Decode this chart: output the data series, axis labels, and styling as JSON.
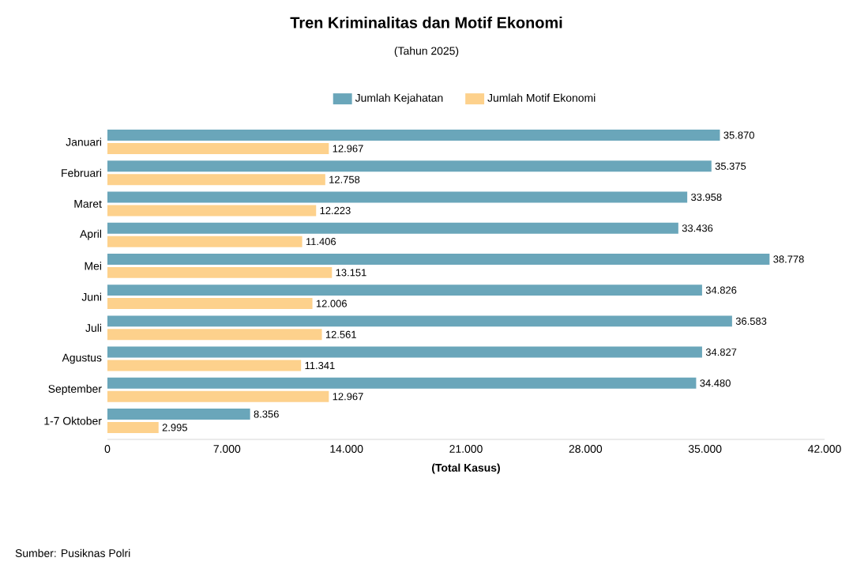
{
  "chart_data": {
    "type": "bar",
    "orientation": "horizontal",
    "title": "Tren Kriminalitas dan Motif Ekonomi",
    "subtitle": "(Tahun 2025)",
    "xlabel": "(Total Kasus)",
    "categories": [
      "Januari",
      "Februari",
      "Maret",
      "April",
      "Mei",
      "Juni",
      "Juli",
      "Agustus",
      "September",
      "1-7 Oktober"
    ],
    "series": [
      {
        "name": "Jumlah Kejahatan",
        "color": "#6aa6ba",
        "values": [
          35870,
          35375,
          33958,
          33436,
          38778,
          34826,
          36583,
          34827,
          34480,
          8356
        ],
        "value_labels": [
          "35.870",
          "35.375",
          "33.958",
          "33.436",
          "38.778",
          "34.826",
          "36.583",
          "34.827",
          "34.480",
          "8.356"
        ]
      },
      {
        "name": "Jumlah Motif Ekonomi",
        "color": "#fdd18c",
        "values": [
          12967,
          12758,
          12223,
          11406,
          13151,
          12006,
          12561,
          11341,
          12967,
          2995
        ],
        "value_labels": [
          "12.967",
          "12.758",
          "12.223",
          "11.406",
          "13.151",
          "12.006",
          "12.561",
          "11.341",
          "12.967",
          "2.995"
        ]
      }
    ],
    "xlim": [
      0,
      42000
    ],
    "xticks": [
      0,
      {
        "value": 7000,
        "label": "7.000"
      },
      {
        "value": 14000,
        "label": "14.000"
      },
      {
        "value": 21000,
        "label": "21.000"
      },
      {
        "value": 28000,
        "label": "28.000"
      },
      {
        "value": 35000,
        "label": "35.000"
      },
      {
        "value": 42000,
        "label": "42.000"
      }
    ],
    "legend": "top",
    "annotations": [
      "Sumber: Pusiknas Polri"
    ]
  }
}
